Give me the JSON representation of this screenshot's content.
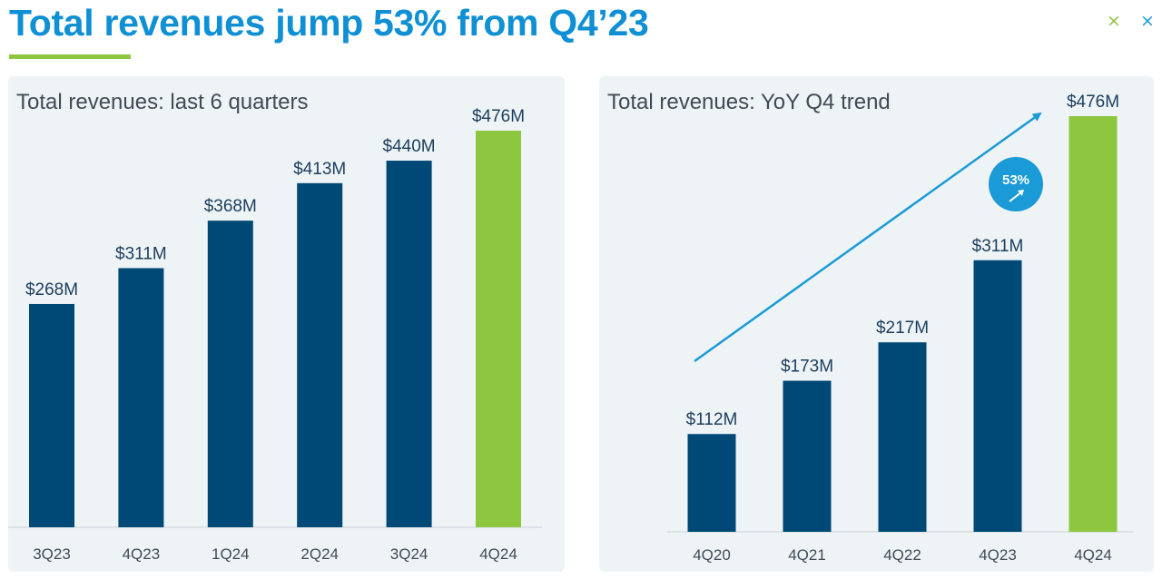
{
  "header": {
    "title": "Total revenues jump 53% from Q4’23",
    "deco_mark_a": "×",
    "deco_mark_b": "×"
  },
  "colors": {
    "title": "#0f8fd4",
    "accent_green": "#8dc63f",
    "bar_navy": "#004876",
    "label_navy": "#1c3e5c",
    "arrow_blue": "#1a9ad6",
    "axis": "#c9d1d8",
    "deco_green": "#8dc63f",
    "deco_blue": "#1a9ad6"
  },
  "chart_data": [
    {
      "type": "bar",
      "title": "Total revenues: last 6 quarters",
      "categories": [
        "3Q23",
        "4Q23",
        "1Q24",
        "2Q24",
        "3Q24",
        "4Q24"
      ],
      "values": [
        268,
        311,
        368,
        413,
        440,
        476
      ],
      "value_labels": [
        "$268M",
        "$311M",
        "$368M",
        "$413M",
        "$440M",
        "$476M"
      ],
      "highlight_index": 5,
      "unit": "$M",
      "xlabel": "",
      "ylabel": "",
      "ylim": [
        0,
        476
      ],
      "grid": false,
      "legend": "none"
    },
    {
      "type": "bar",
      "title": "Total revenues: YoY Q4 trend",
      "categories": [
        "4Q20",
        "4Q21",
        "4Q22",
        "4Q23",
        "4Q24"
      ],
      "values": [
        112,
        173,
        217,
        311,
        476
      ],
      "value_labels": [
        "$112M",
        "$173M",
        "$217M",
        "$311M",
        "$476M"
      ],
      "highlight_index": 4,
      "unit": "$M",
      "xlabel": "",
      "ylabel": "",
      "ylim": [
        0,
        476
      ],
      "grid": false,
      "legend": "none",
      "annotation": {
        "badge_text": "53%",
        "trend_arrow": "up"
      }
    }
  ]
}
